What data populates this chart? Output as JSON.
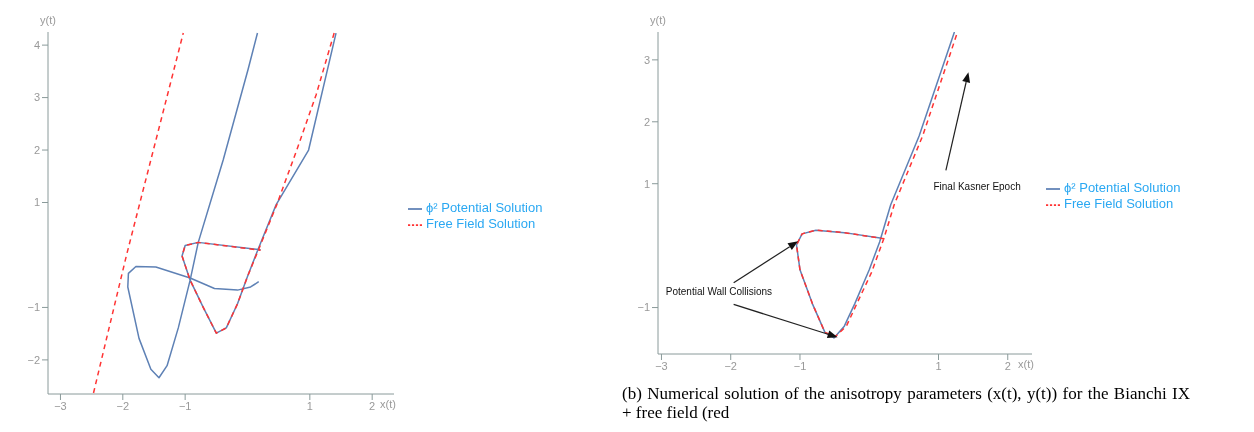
{
  "chart_data": [
    {
      "type": "line",
      "xlabel": "x(t)",
      "ylabel": "y(t)",
      "xlim": [
        -3.2,
        2.35
      ],
      "ylim": [
        -2.65,
        4.25
      ],
      "xticks": [
        -3,
        -2,
        -1,
        1,
        2
      ],
      "yticks": [
        -2,
        -1,
        1,
        2,
        3,
        4
      ],
      "grid": false,
      "legend": "right",
      "marker": "none",
      "series": [
        {
          "name": "ϕ² Potential Solution",
          "color": "#5e81b5",
          "line_style": "solid",
          "x": [
            0.16,
            0.01,
            -0.39,
            -0.79,
            -0.92,
            -1.11,
            -1.29,
            -1.42,
            -1.55,
            -1.74,
            -1.92,
            -1.91,
            -1.79,
            -1.47,
            -0.92,
            -0.53,
            -0.16,
            0.05,
            0.18,
            null,
            1.42,
            0.98,
            0.46,
            0.17,
            0,
            -0.16,
            -0.34,
            -0.5,
            -0.71,
            -0.92,
            -1.05,
            -1.0,
            -0.79,
            0.21
          ],
          "values": [
            4.23,
            3.54,
            1.81,
            0.24,
            -0.48,
            -1.39,
            -2.11,
            -2.34,
            -2.18,
            -1.59,
            -0.61,
            -0.35,
            -0.22,
            -0.23,
            -0.44,
            -0.64,
            -0.67,
            -0.61,
            -0.51,
            null,
            4.23,
            2.0,
            0.96,
            0.11,
            -0.41,
            -0.93,
            -1.39,
            -1.49,
            -1.0,
            -0.48,
            -0.02,
            0.18,
            0.24,
            0.1
          ]
        },
        {
          "name": "Free Field Solution",
          "color": "#ff3333",
          "line_style": "dashed",
          "x": [
            -2.47,
            -1.94,
            -1.03,
            null,
            1.39,
            1.1,
            0.79,
            0.47,
            0.18,
            0,
            -0.16,
            -0.34,
            -0.5,
            -0.71,
            -0.92,
            -1.05,
            -1.0,
            -0.79,
            0.21
          ],
          "values": [
            -2.63,
            0,
            4.23,
            null,
            4.23,
            3.05,
            2.0,
            0.96,
            0.11,
            -0.41,
            -0.93,
            -1.39,
            -1.49,
            -1.0,
            -0.48,
            -0.02,
            0.18,
            0.24,
            0.09
          ]
        }
      ]
    },
    {
      "type": "line",
      "xlabel": "x(t)",
      "ylabel": "y(t)",
      "xlim": [
        -3.05,
        2.35
      ],
      "ylim": [
        -1.75,
        3.45
      ],
      "xticks": [
        -3,
        -2,
        -1,
        1,
        2
      ],
      "yticks": [
        -1,
        1,
        2,
        3
      ],
      "grid": false,
      "legend": "right",
      "marker": "none",
      "annotations": [
        "Final Kasner Epoch",
        {
          "text": "Potential Wall Collisions",
          "x": -0.55,
          "y": -1.48
        },
        "(b) Numerical solution of the anisotropy parameters (x(t), y(t)) for the Bianchi IX + free field (red"
      ],
      "series": [
        {
          "name": "ϕ² Potential Solution",
          "color": "#5e81b5",
          "line_style": "solid",
          "x": [
            1.23,
            0.72,
            0.31,
            0.15,
            0,
            -0.21,
            -0.36,
            -0.51,
            -0.64,
            -0.82,
            -1.0,
            -1.05,
            -0.97,
            -0.77,
            -0.36,
            0.18
          ],
          "values": [
            3.45,
            1.77,
            0.66,
            0.06,
            -0.39,
            -0.94,
            -1.3,
            -1.49,
            -1.4,
            -0.94,
            -0.39,
            0.01,
            0.19,
            0.25,
            0.21,
            0.12
          ]
        },
        {
          "name": "Free Field Solution",
          "color": "#ff3333",
          "line_style": "dashed",
          "x": [
            1.26,
            0.77,
            0.36,
            0.21,
            0.03,
            -0.18,
            -0.33,
            -0.49,
            -0.64,
            -0.82,
            -1.0,
            -1.05,
            -0.97,
            -0.77,
            -0.36,
            0.22
          ],
          "values": [
            3.4,
            1.77,
            0.66,
            0.11,
            -0.44,
            -0.94,
            -1.3,
            -1.47,
            -1.4,
            -0.94,
            -0.39,
            0.01,
            0.19,
            0.25,
            0.21,
            0.11
          ]
        }
      ]
    }
  ]
}
